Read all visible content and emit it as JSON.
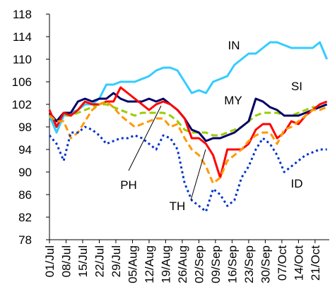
{
  "chart_data": {
    "type": "line",
    "x": [
      0,
      3,
      6,
      9,
      12,
      15,
      18,
      21,
      24,
      27,
      30,
      33,
      36,
      39,
      42,
      45,
      48,
      51,
      54,
      57,
      60,
      63,
      66,
      69,
      72,
      75,
      78,
      81,
      84,
      87,
      90,
      93,
      96,
      99,
      102,
      105,
      108,
      111,
      114,
      117
    ],
    "xlim": [
      0,
      118
    ],
    "xticks": [
      {
        "value": 0,
        "label": "01/Jul"
      },
      {
        "value": 7,
        "label": "08/Jul"
      },
      {
        "value": 14,
        "label": "15/Jul"
      },
      {
        "value": 21,
        "label": "22/Jul"
      },
      {
        "value": 28,
        "label": "29/Jul"
      },
      {
        "value": 35,
        "label": "05/Aug"
      },
      {
        "value": 42,
        "label": "12/Aug"
      },
      {
        "value": 49,
        "label": "19/Aug"
      },
      {
        "value": 56,
        "label": "26/Aug"
      },
      {
        "value": 63,
        "label": "02/Sep"
      },
      {
        "value": 70,
        "label": "09/Sep"
      },
      {
        "value": 77,
        "label": "16/Sep"
      },
      {
        "value": 84,
        "label": "23/Sep"
      },
      {
        "value": 91,
        "label": "30/Sep"
      },
      {
        "value": 98,
        "label": "07/Oct"
      },
      {
        "value": 105,
        "label": "14/Oct"
      },
      {
        "value": 112,
        "label": "21/Oct"
      }
    ],
    "ylim": [
      78,
      118
    ],
    "yticks": [
      78,
      82,
      86,
      90,
      94,
      98,
      102,
      106,
      110,
      114,
      118
    ],
    "grid": false,
    "series": [
      {
        "name": "IN",
        "color": "#33ccff",
        "dash": "solid",
        "values": [
          100,
          97,
          100,
          100.5,
          101,
          102,
          102,
          103,
          105.5,
          105.5,
          106,
          106,
          106,
          106.5,
          107,
          108,
          108.5,
          108.5,
          108,
          106,
          104,
          104.5,
          104,
          106,
          106.5,
          107,
          109,
          110,
          111,
          111,
          112,
          113,
          113,
          112.5,
          112,
          112,
          112,
          112,
          113,
          110
        ]
      },
      {
        "name": "SI",
        "color": "#99cc00",
        "dash": "dash",
        "values": [
          100,
          99,
          100,
          100,
          100.5,
          101,
          101.5,
          102,
          102,
          101.5,
          101,
          100.5,
          100,
          100.5,
          100.5,
          100.5,
          100.5,
          100,
          99,
          97.5,
          97,
          97,
          97,
          96.5,
          96.5,
          97,
          97.5,
          98,
          99,
          100,
          100.5,
          100.5,
          100.5,
          100,
          100,
          100.5,
          101,
          101.5,
          101.5,
          102
        ]
      },
      {
        "name": "MY",
        "color": "#000066",
        "dash": "solid",
        "values": [
          100.5,
          99,
          100.5,
          100.5,
          102.5,
          103,
          102.5,
          103,
          103,
          104,
          103,
          102.5,
          102.5,
          102.5,
          103,
          102.5,
          103,
          102,
          101,
          99.5,
          97.5,
          97,
          95.5,
          96,
          96,
          96.5,
          97,
          98,
          99,
          103,
          102.5,
          101.5,
          101,
          100,
          100,
          100,
          100.5,
          101,
          101.5,
          102
        ]
      },
      {
        "name": "PH",
        "color": "#ff0000",
        "dash": "solid",
        "values": [
          101,
          98,
          100.5,
          100,
          101,
          102.5,
          102,
          102,
          102.5,
          102.5,
          105,
          104,
          103,
          102,
          101,
          102,
          102.5,
          102,
          101,
          99.5,
          96,
          96,
          95,
          93,
          89,
          94,
          94,
          94,
          95,
          97.5,
          98.5,
          98.5,
          96,
          97,
          99,
          98.5,
          100,
          101,
          102,
          102.5
        ]
      },
      {
        "name": "TH",
        "color": "#ff9900",
        "dash": "dash",
        "values": [
          100,
          99,
          99,
          96,
          97,
          99,
          101,
          102,
          102.5,
          101.5,
          100,
          99,
          98,
          98.5,
          99,
          99.5,
          99.5,
          98,
          98.5,
          96,
          94,
          93,
          91,
          88,
          89,
          92,
          93,
          94,
          95.5,
          96.5,
          97,
          97,
          95,
          97.5,
          98,
          99,
          100,
          101,
          101,
          101.5
        ]
      },
      {
        "name": "ID",
        "color": "#0033cc",
        "dash": "dot",
        "values": [
          96.5,
          95,
          92,
          97,
          97,
          98,
          97.5,
          96.5,
          95,
          95.5,
          96,
          96,
          96.5,
          96,
          95,
          94,
          96.5,
          96,
          94,
          88,
          85,
          84,
          83,
          87,
          86,
          84,
          85,
          89,
          91,
          94,
          96,
          95,
          93,
          90,
          91,
          92,
          93,
          93.5,
          94,
          94
        ]
      }
    ]
  }
}
